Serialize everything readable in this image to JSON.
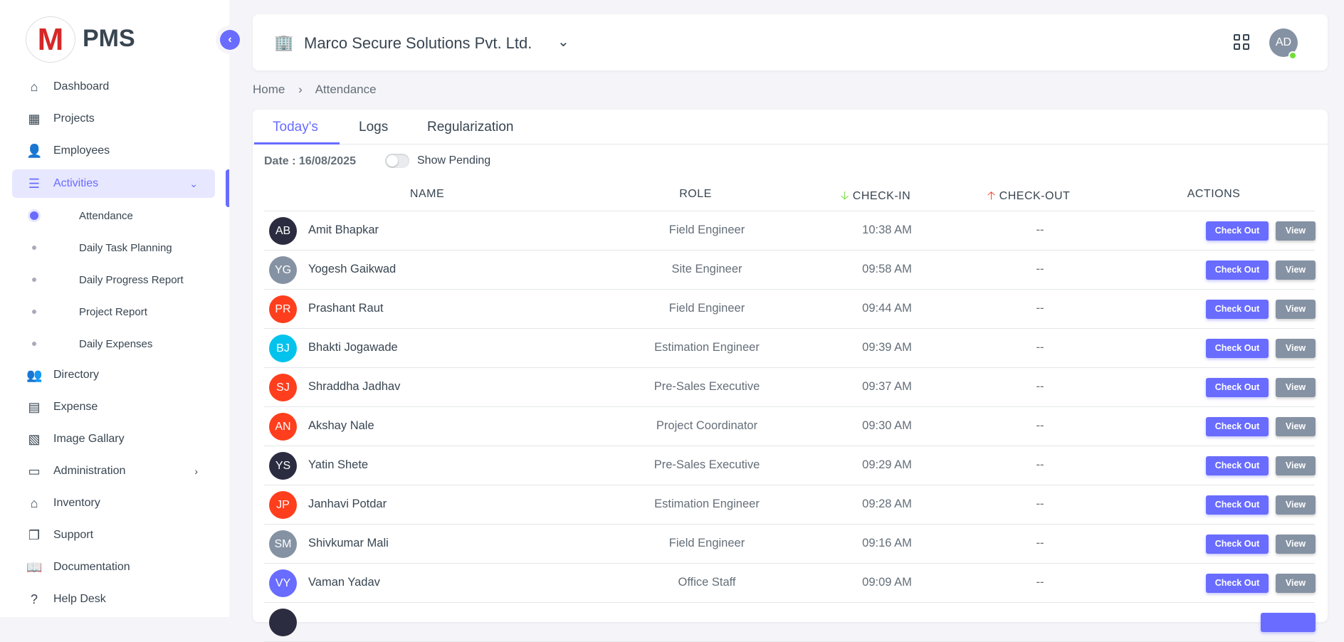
{
  "app": {
    "logo_letter": "M",
    "brand": "PMS"
  },
  "sidebar": {
    "items": [
      {
        "label": "Dashboard",
        "icon": "home-icon"
      },
      {
        "label": "Projects",
        "icon": "building-icon"
      },
      {
        "label": "Employees",
        "icon": "user-icon"
      },
      {
        "label": "Activities",
        "icon": "list-icon",
        "active": true,
        "expanded": true
      },
      {
        "label": "Directory",
        "icon": "contacts-icon"
      },
      {
        "label": "Expense",
        "icon": "receipt-icon"
      },
      {
        "label": "Image Gallary",
        "icon": "gallery-icon"
      },
      {
        "label": "Administration",
        "icon": "archive-icon"
      },
      {
        "label": "Inventory",
        "icon": "store-icon"
      },
      {
        "label": "Support",
        "icon": "copy-icon"
      },
      {
        "label": "Documentation",
        "icon": "book-icon"
      },
      {
        "label": "Help Desk",
        "icon": "question-icon"
      }
    ],
    "subitems": [
      {
        "label": "Attendance",
        "current": true
      },
      {
        "label": "Daily Task Planning"
      },
      {
        "label": "Daily Progress Report"
      },
      {
        "label": "Project Report"
      },
      {
        "label": "Daily Expenses"
      }
    ]
  },
  "header": {
    "org": "Marco Secure Solutions Pvt. Ltd.",
    "user_initials": "AD",
    "status_color": "#71dd37"
  },
  "breadcrumb": [
    "Home",
    "Attendance"
  ],
  "tabs": [
    "Today's",
    "Logs",
    "Regularization"
  ],
  "filter": {
    "date": "Date : 16/08/2025",
    "toggle_label": "Show Pending",
    "toggle_on": false
  },
  "table": {
    "headers": [
      "NAME",
      "ROLE",
      "CHECK-IN",
      "CHECK-OUT",
      "ACTIONS"
    ],
    "checkout_label": "Check Out",
    "view_label": "View",
    "rows": [
      {
        "initials": "AB",
        "color": "#2b2c40",
        "name": "Amit Bhapkar",
        "role": "Field Engineer",
        "in": "10:38 AM",
        "out": "--"
      },
      {
        "initials": "YG",
        "color": "#8592a3",
        "name": "Yogesh Gaikwad",
        "role": "Site Engineer",
        "in": "09:58 AM",
        "out": "--"
      },
      {
        "initials": "PR",
        "color": "#ff3e1d",
        "name": "Prashant Raut",
        "role": "Field Engineer",
        "in": "09:44 AM",
        "out": "--"
      },
      {
        "initials": "BJ",
        "color": "#03c3ec",
        "name": "Bhakti Jogawade",
        "role": "Estimation Engineer",
        "in": "09:39 AM",
        "out": "--"
      },
      {
        "initials": "SJ",
        "color": "#ff3e1d",
        "name": "Shraddha Jadhav",
        "role": "Pre-Sales Executive",
        "in": "09:37 AM",
        "out": "--"
      },
      {
        "initials": "AN",
        "color": "#ff3e1d",
        "name": "Akshay Nale",
        "role": "Project Coordinator",
        "in": "09:30 AM",
        "out": "--"
      },
      {
        "initials": "YS",
        "color": "#2b2c40",
        "name": "Yatin Shete",
        "role": "Pre-Sales Executive",
        "in": "09:29 AM",
        "out": "--"
      },
      {
        "initials": "JP",
        "color": "#ff3e1d",
        "name": "Janhavi Potdar",
        "role": "Estimation Engineer",
        "in": "09:28 AM",
        "out": "--"
      },
      {
        "initials": "SM",
        "color": "#8592a3",
        "name": "Shivkumar Mali",
        "role": "Field Engineer",
        "in": "09:16 AM",
        "out": "--"
      },
      {
        "initials": "VY",
        "color": "#696cff",
        "name": "Vaman Yadav",
        "role": "Office Staff",
        "in": "09:09 AM",
        "out": "--"
      }
    ]
  },
  "colors": {
    "accent": "#696cff",
    "checkin_arrow": "#71dd37",
    "checkout_arrow": "#ff3e1d"
  }
}
